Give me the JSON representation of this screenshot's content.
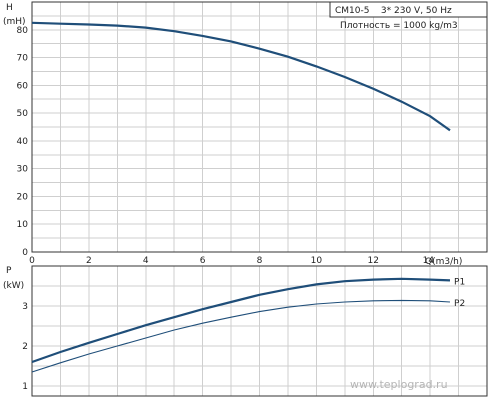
{
  "chart_data": [
    {
      "type": "line",
      "id": "head",
      "ylabel_top": "H",
      "ylabel_unit": "(mH)",
      "xlabel": "Q(m3/h)",
      "xlim": [
        0,
        16
      ],
      "ylim": [
        0,
        90
      ],
      "xticks": [
        0,
        2,
        4,
        6,
        8,
        10,
        12,
        14
      ],
      "yticks": [
        0,
        10,
        20,
        30,
        40,
        50,
        60,
        70,
        80
      ],
      "grid": true,
      "info_lines": [
        "CM10-5    3* 230 V, 50 Hz",
        "Плотность = 1000 kg/m3"
      ],
      "series": [
        {
          "x": [
            0,
            1,
            2,
            3,
            4,
            5,
            6,
            7,
            8,
            9,
            10,
            11,
            12,
            13,
            14,
            14.7
          ],
          "values": [
            82.5,
            82.2,
            81.9,
            81.5,
            80.8,
            79.5,
            77.8,
            75.8,
            73.2,
            70.3,
            66.8,
            63.0,
            58.8,
            54.1,
            48.9,
            43.8
          ]
        }
      ]
    },
    {
      "type": "line",
      "id": "power",
      "ylabel_top": "P",
      "ylabel_unit": "(kW)",
      "xlim": [
        0,
        16
      ],
      "ylim": [
        0.75,
        4
      ],
      "yticks": [
        1,
        2,
        3
      ],
      "grid": true,
      "series": [
        {
          "name": "P1",
          "x": [
            0,
            1,
            2,
            3,
            4,
            5,
            6,
            7,
            8,
            9,
            10,
            11,
            12,
            13,
            14,
            14.7
          ],
          "values": [
            1.6,
            1.85,
            2.08,
            2.3,
            2.52,
            2.72,
            2.92,
            3.1,
            3.28,
            3.42,
            3.54,
            3.62,
            3.66,
            3.68,
            3.66,
            3.64
          ]
        },
        {
          "name": "P2",
          "x": [
            0,
            1,
            2,
            3,
            4,
            5,
            6,
            7,
            8,
            9,
            10,
            11,
            12,
            13,
            14,
            14.7
          ],
          "values": [
            1.35,
            1.58,
            1.8,
            2.0,
            2.2,
            2.4,
            2.57,
            2.72,
            2.86,
            2.97,
            3.05,
            3.1,
            3.13,
            3.14,
            3.13,
            3.1
          ]
        }
      ]
    }
  ],
  "watermark": "www.teplograd.ru"
}
